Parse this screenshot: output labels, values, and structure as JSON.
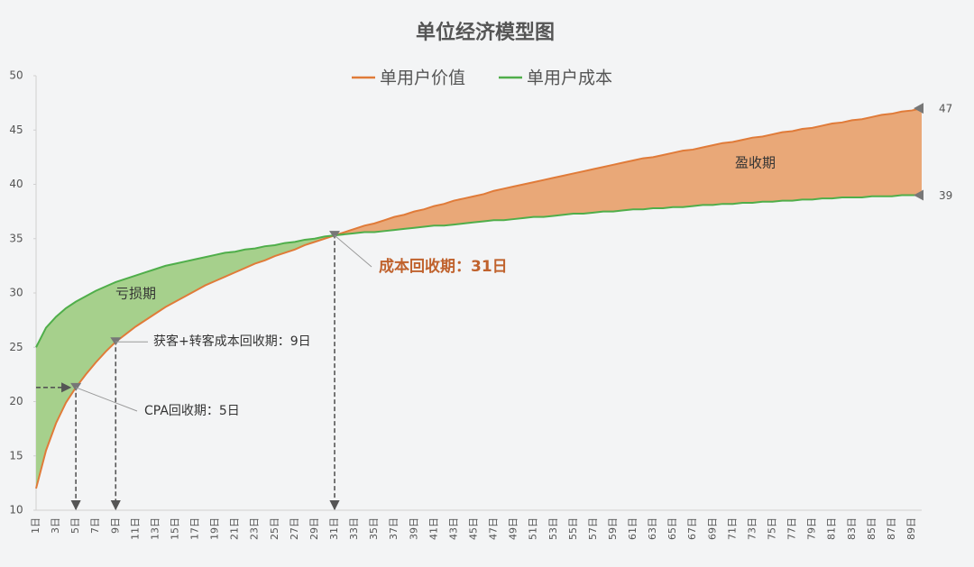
{
  "chart_data": {
    "type": "line",
    "title": "单位经济模型图",
    "categories": [
      "1日",
      null,
      "3日",
      null,
      "5日",
      null,
      "7日",
      null,
      "9日",
      null,
      "11日",
      null,
      "13日",
      null,
      "15日",
      null,
      "17日",
      null,
      "19日",
      null,
      "21日",
      null,
      "23日",
      null,
      "25日",
      null,
      "27日",
      null,
      "29日",
      null,
      "31日",
      null,
      "33日",
      null,
      "35日",
      null,
      "37日",
      null,
      "39日",
      null,
      "41日",
      null,
      "43日",
      null,
      "45日",
      null,
      "47日",
      null,
      "49日",
      null,
      "51日",
      null,
      "53日",
      null,
      "55日",
      null,
      "57日",
      null,
      "59日",
      null,
      "61日",
      null,
      "63日",
      null,
      "65日",
      null,
      "67日",
      null,
      "69日",
      null,
      "71日",
      null,
      "73日",
      null,
      "75日",
      null,
      "77日",
      null,
      "79日",
      null,
      "81日",
      null,
      "83日",
      null,
      "85日",
      null,
      "87日",
      null,
      "89日",
      null
    ],
    "series": [
      {
        "name": "单用户价值",
        "color": "#e07b39",
        "fill": "#e9a878",
        "values": [
          12,
          15.5,
          18,
          19.9,
          21.3,
          22.5,
          23.6,
          24.6,
          25.5,
          26.2,
          26.9,
          27.5,
          28.1,
          28.7,
          29.2,
          29.7,
          30.2,
          30.7,
          31.1,
          31.5,
          31.9,
          32.3,
          32.7,
          33.0,
          33.4,
          33.7,
          34.0,
          34.4,
          34.7,
          35.0,
          35.3,
          35.6,
          35.9,
          36.2,
          36.4,
          36.7,
          37.0,
          37.2,
          37.5,
          37.7,
          38.0,
          38.2,
          38.5,
          38.7,
          38.9,
          39.1,
          39.4,
          39.6,
          39.8,
          40.0,
          40.2,
          40.4,
          40.6,
          40.8,
          41.0,
          41.2,
          41.4,
          41.6,
          41.8,
          42.0,
          42.2,
          42.4,
          42.5,
          42.7,
          42.9,
          43.1,
          43.2,
          43.4,
          43.6,
          43.8,
          43.9,
          44.1,
          44.3,
          44.4,
          44.6,
          44.8,
          44.9,
          45.1,
          45.2,
          45.4,
          45.6,
          45.7,
          45.9,
          46.0,
          46.2,
          46.4,
          46.5,
          46.7,
          46.8,
          47
        ]
      },
      {
        "name": "单用户成本",
        "color": "#4fae4a",
        "fill": "#a6d08c",
        "values": [
          25,
          26.8,
          27.8,
          28.6,
          29.2,
          29.7,
          30.2,
          30.6,
          31.0,
          31.3,
          31.6,
          31.9,
          32.2,
          32.5,
          32.7,
          32.9,
          33.1,
          33.3,
          33.5,
          33.7,
          33.8,
          34.0,
          34.1,
          34.3,
          34.4,
          34.6,
          34.7,
          34.9,
          35.0,
          35.2,
          35.3,
          35.4,
          35.5,
          35.6,
          35.6,
          35.7,
          35.8,
          35.9,
          36.0,
          36.1,
          36.2,
          36.2,
          36.3,
          36.4,
          36.5,
          36.6,
          36.7,
          36.7,
          36.8,
          36.9,
          37.0,
          37.0,
          37.1,
          37.2,
          37.3,
          37.3,
          37.4,
          37.5,
          37.5,
          37.6,
          37.7,
          37.7,
          37.8,
          37.8,
          37.9,
          37.9,
          38.0,
          38.1,
          38.1,
          38.2,
          38.2,
          38.3,
          38.3,
          38.4,
          38.4,
          38.5,
          38.5,
          38.6,
          38.6,
          38.7,
          38.7,
          38.8,
          38.8,
          38.8,
          38.9,
          38.9,
          38.9,
          39.0,
          39.0,
          39
        ]
      }
    ],
    "ylim": [
      10,
      50
    ],
    "yticks": [
      10,
      15,
      20,
      25,
      30,
      35,
      40,
      45,
      50
    ],
    "grid": false,
    "legend": "top",
    "annotations": [
      "亏损期",
      "盈收期",
      "CPA回收期：5日",
      "获客+转客成本回收期：9日",
      "成本回收期：31日"
    ]
  }
}
